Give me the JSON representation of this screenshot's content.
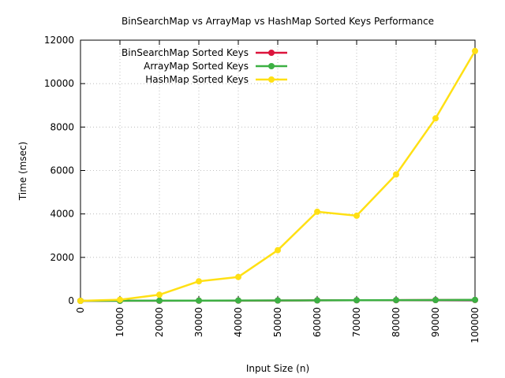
{
  "chart_data": {
    "type": "line",
    "title": "BinSearchMap vs ArrayMap vs HashMap Sorted Keys Performance",
    "xlabel": "Input Size (n)",
    "ylabel": "Time (msec)",
    "xlim": [
      0,
      100000
    ],
    "ylim": [
      0,
      12000
    ],
    "x_ticks": [
      "0",
      "10000",
      "20000",
      "30000",
      "40000",
      "50000",
      "60000",
      "70000",
      "80000",
      "90000",
      "100000"
    ],
    "y_ticks": [
      "0",
      "2000",
      "4000",
      "6000",
      "8000",
      "10000",
      "12000"
    ],
    "grid": true,
    "legend_position": "top-left",
    "x": [
      0,
      10000,
      20000,
      30000,
      40000,
      50000,
      60000,
      70000,
      80000,
      90000,
      100000
    ],
    "series": [
      {
        "name": "BinSearchMap Sorted Keys",
        "color": "#dc143c",
        "values": [
          0,
          2,
          5,
          8,
          12,
          15,
          20,
          25,
          30,
          35,
          40
        ]
      },
      {
        "name": "ArrayMap Sorted Keys",
        "color": "#3cb043",
        "values": [
          0,
          3,
          6,
          10,
          14,
          18,
          22,
          28,
          32,
          38,
          45
        ]
      },
      {
        "name": "HashMap Sorted Keys",
        "color": "#ffe014",
        "values": [
          0,
          50,
          280,
          900,
          1100,
          2330,
          4100,
          3920,
          5820,
          8400,
          11500
        ]
      }
    ]
  }
}
